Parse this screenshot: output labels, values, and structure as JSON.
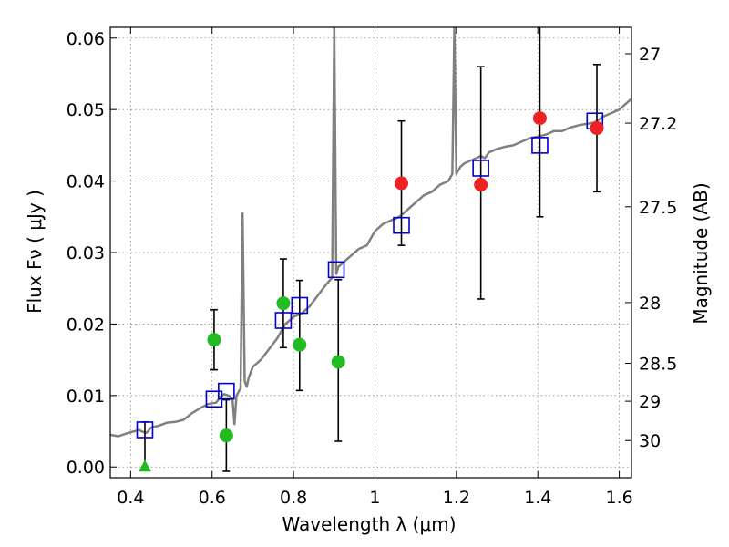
{
  "chart_data": {
    "type": "scatter",
    "xlabel": "Wavelength  λ (μm)",
    "ylabel": "Flux  Fν  ( μJy )",
    "ylabel_right": "Magnitude (AB)",
    "xlim": [
      0.35,
      1.63
    ],
    "ylim": [
      -0.0015,
      0.0615
    ],
    "grid": true,
    "x_ticks": [
      0.4,
      0.6,
      0.8,
      1.0,
      1.2,
      1.4,
      1.6
    ],
    "x_tick_labels": [
      "0.4",
      "0.6",
      "0.8",
      "1",
      "1.2",
      "1.4",
      "1.6"
    ],
    "y_ticks": [
      0.0,
      0.01,
      0.02,
      0.03,
      0.04,
      0.05,
      0.06
    ],
    "y_tick_labels": [
      "0.00",
      "0.01",
      "0.02",
      "0.03",
      "0.04",
      "0.05",
      "0.06"
    ],
    "mag_ticks": [
      {
        "label": "27",
        "flux": 0.0578
      },
      {
        "label": "27.2",
        "flux": 0.0481
      },
      {
        "label": "27.5",
        "flux": 0.0364
      },
      {
        "label": "28",
        "flux": 0.023
      },
      {
        "label": "28.5",
        "flux": 0.0145
      },
      {
        "label": "29",
        "flux": 0.0092
      },
      {
        "label": "30",
        "flux": 0.0037
      }
    ],
    "colors": {
      "model": "#808080",
      "model_photometry": "#0000cc",
      "hst": "#22bb22",
      "ir": "#ee2222",
      "errorbar": "#000000",
      "grid": "#888888"
    },
    "series": [
      {
        "marker": "line",
        "x": [
          0.35,
          0.37,
          0.39,
          0.41,
          0.42,
          0.43,
          0.44,
          0.45,
          0.47,
          0.49,
          0.51,
          0.53,
          0.55,
          0.57,
          0.59,
          0.61,
          0.62,
          0.63,
          0.64,
          0.65,
          0.655,
          0.66,
          0.67,
          0.675,
          0.68,
          0.685,
          0.69,
          0.7,
          0.72,
          0.74,
          0.76,
          0.78,
          0.8,
          0.82,
          0.84,
          0.86,
          0.88,
          0.895,
          0.9,
          0.905,
          0.91,
          0.92,
          0.94,
          0.96,
          0.98,
          1.0,
          1.02,
          1.04,
          1.06,
          1.08,
          1.1,
          1.12,
          1.14,
          1.16,
          1.18,
          1.19,
          1.195,
          1.2,
          1.21,
          1.22,
          1.24,
          1.26,
          1.27,
          1.28,
          1.3,
          1.32,
          1.34,
          1.36,
          1.38,
          1.4,
          1.42,
          1.44,
          1.46,
          1.48,
          1.5,
          1.52,
          1.54,
          1.56,
          1.58,
          1.6,
          1.62,
          1.63
        ],
        "y": [
          0.0045,
          0.0043,
          0.0047,
          0.005,
          0.0052,
          0.0049,
          0.0048,
          0.0055,
          0.0058,
          0.0062,
          0.0063,
          0.0066,
          0.0075,
          0.0082,
          0.0088,
          0.009,
          0.0098,
          0.0102,
          0.01,
          0.0095,
          0.006,
          0.01,
          0.011,
          0.0355,
          0.012,
          0.0112,
          0.0125,
          0.014,
          0.015,
          0.0165,
          0.018,
          0.02,
          0.021,
          0.0215,
          0.0225,
          0.024,
          0.0255,
          0.0265,
          0.0615,
          0.027,
          0.028,
          0.0285,
          0.0295,
          0.0305,
          0.031,
          0.033,
          0.034,
          0.0345,
          0.035,
          0.036,
          0.037,
          0.038,
          0.0385,
          0.0395,
          0.04,
          0.041,
          0.0615,
          0.041,
          0.042,
          0.0425,
          0.043,
          0.0435,
          0.0432,
          0.044,
          0.0445,
          0.0448,
          0.045,
          0.0455,
          0.046,
          0.0462,
          0.0465,
          0.047,
          0.047,
          0.0475,
          0.0478,
          0.048,
          0.0482,
          0.049,
          0.0495,
          0.05,
          0.051,
          0.0515
        ]
      },
      {
        "marker": "open-square",
        "x": [
          0.435,
          0.605,
          0.635,
          0.775,
          0.815,
          0.905,
          1.065,
          1.26,
          1.405,
          1.54
        ],
        "y": [
          0.0052,
          0.0095,
          0.0106,
          0.0205,
          0.0226,
          0.0276,
          0.0338,
          0.0418,
          0.045,
          0.0484
        ]
      },
      {
        "marker": "circle",
        "x": [
          0.605,
          0.635,
          0.775,
          0.815,
          0.91
        ],
        "y": [
          0.0178,
          0.0044,
          0.0229,
          0.0171,
          0.0147
        ],
        "yerr_low": [
          0.0042,
          0.005,
          0.0062,
          0.0064,
          0.0111
        ],
        "yerr_high": [
          0.0042,
          0.005,
          0.0062,
          0.009,
          0.0115
        ]
      },
      {
        "marker": "triangle-up",
        "x": [
          0.435
        ],
        "y": [
          0.0
        ],
        "yerr_low": [
          0.0
        ],
        "yerr_high": [
          0.0063
        ]
      },
      {
        "marker": "circle",
        "x": [
          1.065,
          1.26,
          1.405,
          1.545
        ],
        "y": [
          0.0397,
          0.0395,
          0.0488,
          0.0474
        ],
        "yerr_low": [
          0.0087,
          0.016,
          0.0138,
          0.0089
        ],
        "yerr_high": [
          0.0087,
          0.0165,
          0.0138,
          0.0089
        ]
      }
    ]
  }
}
